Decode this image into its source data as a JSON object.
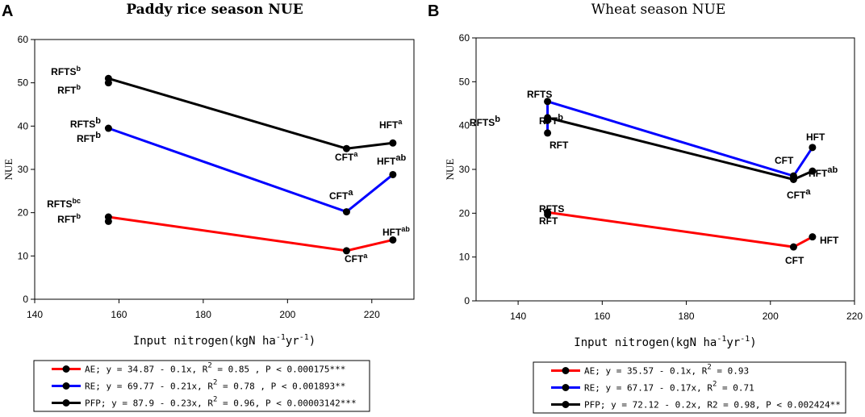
{
  "chart_data": [
    {
      "panel": "A",
      "type": "line",
      "title": "Paddy rice season NUE",
      "xlabel": "Input nitrogen(kgN ha",
      "xlabel_unit1": "-1",
      "xlabel_mid": "yr",
      "xlabel_unit2": "-1",
      "xlabel_end": ")",
      "ylabel": "NUE",
      "xlim": [
        140,
        230
      ],
      "ylim": [
        0,
        60
      ],
      "xticks": [
        140,
        160,
        180,
        200,
        220
      ],
      "yticks": [
        0,
        10,
        20,
        30,
        40,
        50,
        60
      ],
      "series": [
        {
          "name": "AE",
          "color": "#ff0000",
          "x": [
            157.5,
            214,
            225
          ],
          "y": [
            19,
            11.2,
            13.7
          ],
          "extra_points": [
            [
              157.5,
              18
            ]
          ],
          "legend": "AE; y = 34.87 - 0.1x, R",
          "legend_sup": "2",
          "legend_end": " = 0.85 , P < 0.000175***"
        },
        {
          "name": "RE",
          "color": "#0000ff",
          "x": [
            157.5,
            214,
            225
          ],
          "y": [
            39.5,
            20.2,
            28.8
          ],
          "extra_points": [],
          "legend": "RE; y = 69.77 - 0.21x, R",
          "legend_sup": "2",
          "legend_end": " = 0.78 , P < 0.001893**"
        },
        {
          "name": "PFP",
          "color": "#000000",
          "x": [
            157.5,
            214,
            225
          ],
          "y": [
            51,
            34.8,
            36.1
          ],
          "extra_points": [
            [
              157.5,
              50
            ]
          ],
          "legend": "PFP; y = 87.9 - 0.23x, R",
          "legend_sup": "2",
          "legend_end": " = 0.96, P < 0.00003142***"
        }
      ],
      "annotations": [
        {
          "text": "RFTS",
          "sup": "b",
          "big": false
        },
        {
          "text": "RFT",
          "sup": "b",
          "big": false
        },
        {
          "text": "RFTS",
          "sup": "b",
          "big": true
        },
        {
          "text": "RFT",
          "sup": "b",
          "big": true
        },
        {
          "text": "RFTS",
          "sup": "bc",
          "big": false
        },
        {
          "text": "RFT",
          "sup": "b",
          "big": false
        },
        {
          "text": "CFT",
          "sup": "a",
          "big": false
        },
        {
          "text": "CFT",
          "sup": "a",
          "big": true
        },
        {
          "text": "CFT",
          "sup": "a",
          "big": false
        },
        {
          "text": "HFT",
          "sup": "a",
          "big": false
        },
        {
          "text": "HFT",
          "sup": "ab",
          "big": true
        },
        {
          "text": "HFT",
          "sup": "ab",
          "big": false
        }
      ]
    },
    {
      "panel": "B",
      "type": "line",
      "title": "Wheat season NUE",
      "xlabel": "Input nitrogen(kgN ha",
      "xlabel_unit1": "-1",
      "xlabel_mid": "yr",
      "xlabel_unit2": "-1",
      "xlabel_end": ")",
      "ylabel": "NUE",
      "xlim": [
        130,
        220
      ],
      "ylim": [
        0,
        60
      ],
      "xticks": [
        140,
        160,
        180,
        200,
        220
      ],
      "yticks": [
        0,
        10,
        20,
        30,
        40,
        50,
        60
      ],
      "series": [
        {
          "name": "AE",
          "color": "#ff0000",
          "x": [
            147,
            205.5,
            210
          ],
          "y": [
            20.2,
            12.3,
            14.6
          ],
          "extra_points": [
            [
              147,
              19.7
            ]
          ],
          "legend": "AE; y = 35.57 - 0.1x, R",
          "legend_sup": "2",
          "legend_end": " = 0.93"
        },
        {
          "name": "RE",
          "color": "#0000ff",
          "x": [
            147,
            147,
            205.5,
            210
          ],
          "y": [
            38.3,
            45.5,
            28.5,
            35
          ],
          "extra_points": [],
          "legend": "RE; y = 67.17 - 0.17x, R",
          "legend_sup": "2",
          "legend_end": " = 0.71"
        },
        {
          "name": "PFP",
          "color": "#000000",
          "x": [
            147,
            205.5,
            210
          ],
          "y": [
            41.8,
            27.7,
            29.6
          ],
          "extra_points": [
            [
              147,
              41.2
            ]
          ],
          "legend": "PFP; y = 72.12 - 0.2x, R2 = 0.98, P < 0.002424**",
          "legend_sup": "",
          "legend_end": ""
        }
      ],
      "annotations": [
        {
          "text": "RFTS",
          "sup": "",
          "big": false
        },
        {
          "text": "RFTS",
          "sup": "b",
          "big": true
        },
        {
          "text": "RFT",
          "sup": "b",
          "big": true
        },
        {
          "text": "RFT",
          "sup": "",
          "big": false
        },
        {
          "text": "RFTS",
          "sup": "",
          "big": false
        },
        {
          "text": "RFT",
          "sup": "",
          "big": false
        },
        {
          "text": "HFT",
          "sup": "",
          "big": false
        },
        {
          "text": "CFT",
          "sup": "",
          "big": false
        },
        {
          "text": "HFT",
          "sup": "ab",
          "big": true
        },
        {
          "text": "CFT",
          "sup": "a",
          "big": true
        },
        {
          "text": "HFT",
          "sup": "",
          "big": false
        },
        {
          "text": "CFT",
          "sup": "",
          "big": false
        }
      ]
    }
  ]
}
